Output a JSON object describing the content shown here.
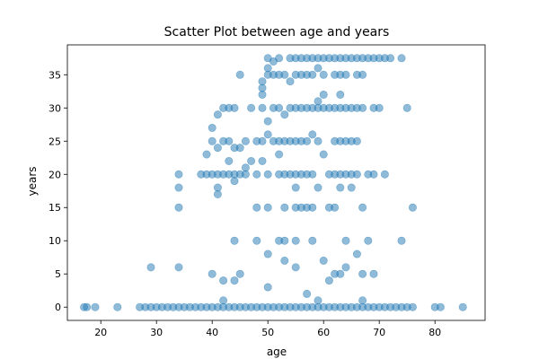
{
  "chart_data": {
    "type": "scatter",
    "title": "Scatter Plot between age and years",
    "xlabel": "age",
    "ylabel": "years",
    "xlim": [
      14,
      89
    ],
    "ylim": [
      -2,
      39.5
    ],
    "xticks": [
      20,
      30,
      40,
      50,
      60,
      70,
      80
    ],
    "yticks": [
      0,
      5,
      10,
      15,
      20,
      25,
      30,
      35
    ],
    "grid": false,
    "legend": "none",
    "color": "#1f77b4",
    "alpha": 0.5,
    "series": [
      {
        "points": [
          [
            17,
            0
          ],
          [
            17.5,
            0
          ],
          [
            19,
            0
          ],
          [
            23,
            0
          ],
          [
            27,
            0
          ],
          [
            28,
            0
          ],
          [
            29,
            0
          ],
          [
            30,
            0
          ],
          [
            31,
            0
          ],
          [
            32,
            0
          ],
          [
            33,
            0
          ],
          [
            34,
            0
          ],
          [
            35,
            0
          ],
          [
            36,
            0
          ],
          [
            37,
            0
          ],
          [
            38,
            0
          ],
          [
            39,
            0
          ],
          [
            40,
            0
          ],
          [
            41,
            0
          ],
          [
            42,
            0
          ],
          [
            43,
            0
          ],
          [
            44,
            0
          ],
          [
            45,
            0
          ],
          [
            46,
            0
          ],
          [
            47,
            0
          ],
          [
            48,
            0
          ],
          [
            49,
            0
          ],
          [
            50,
            0
          ],
          [
            51,
            0
          ],
          [
            52,
            0
          ],
          [
            53,
            0
          ],
          [
            54,
            0
          ],
          [
            55,
            0
          ],
          [
            56,
            0
          ],
          [
            57,
            0
          ],
          [
            58,
            0
          ],
          [
            59,
            0
          ],
          [
            60,
            0
          ],
          [
            61,
            0
          ],
          [
            62,
            0
          ],
          [
            63,
            0
          ],
          [
            64,
            0
          ],
          [
            65,
            0
          ],
          [
            66,
            0
          ],
          [
            67,
            0
          ],
          [
            68,
            0
          ],
          [
            69,
            0
          ],
          [
            70,
            0
          ],
          [
            71,
            0
          ],
          [
            72,
            0
          ],
          [
            73,
            0
          ],
          [
            74,
            0
          ],
          [
            75,
            0
          ],
          [
            76,
            0
          ],
          [
            80,
            0
          ],
          [
            81,
            0
          ],
          [
            85,
            0
          ],
          [
            42,
            1
          ],
          [
            57,
            2
          ],
          [
            50,
            3
          ],
          [
            59,
            1
          ],
          [
            67,
            1
          ],
          [
            29,
            6
          ],
          [
            34,
            6
          ],
          [
            40,
            5
          ],
          [
            42,
            4
          ],
          [
            44,
            4
          ],
          [
            45,
            5
          ],
          [
            50,
            8
          ],
          [
            53,
            7
          ],
          [
            55,
            6
          ],
          [
            60,
            7
          ],
          [
            61,
            4
          ],
          [
            62,
            5
          ],
          [
            63,
            5
          ],
          [
            64,
            6
          ],
          [
            66,
            8
          ],
          [
            67,
            5
          ],
          [
            69,
            5
          ],
          [
            44,
            10
          ],
          [
            48,
            10
          ],
          [
            52,
            10
          ],
          [
            53,
            10
          ],
          [
            55,
            10
          ],
          [
            58,
            10
          ],
          [
            64,
            10
          ],
          [
            68,
            10
          ],
          [
            74,
            10
          ],
          [
            34,
            15
          ],
          [
            48,
            15
          ],
          [
            50,
            15
          ],
          [
            53,
            15
          ],
          [
            55,
            15
          ],
          [
            56,
            15
          ],
          [
            57,
            15
          ],
          [
            58,
            15
          ],
          [
            61,
            15
          ],
          [
            62,
            15
          ],
          [
            67,
            15
          ],
          [
            76,
            15
          ],
          [
            34,
            18
          ],
          [
            41,
            17
          ],
          [
            41,
            18
          ],
          [
            55,
            18
          ],
          [
            59,
            18
          ],
          [
            63,
            18
          ],
          [
            65,
            18
          ],
          [
            34,
            20
          ],
          [
            38,
            20
          ],
          [
            39,
            20
          ],
          [
            40,
            20
          ],
          [
            41,
            20
          ],
          [
            42,
            20
          ],
          [
            43,
            20
          ],
          [
            44,
            20
          ],
          [
            45,
            20
          ],
          [
            46,
            20
          ],
          [
            48,
            20
          ],
          [
            50,
            20
          ],
          [
            52,
            20
          ],
          [
            53,
            20
          ],
          [
            54,
            20
          ],
          [
            55,
            20
          ],
          [
            56,
            20
          ],
          [
            57,
            20
          ],
          [
            58,
            20
          ],
          [
            61,
            20
          ],
          [
            62,
            20
          ],
          [
            63,
            20
          ],
          [
            64,
            20
          ],
          [
            65,
            20
          ],
          [
            66,
            20
          ],
          [
            68,
            20
          ],
          [
            69,
            20
          ],
          [
            71,
            20
          ],
          [
            44,
            19
          ],
          [
            46,
            21
          ],
          [
            47,
            22
          ],
          [
            49,
            22
          ],
          [
            52,
            23
          ],
          [
            60,
            23
          ],
          [
            39,
            23
          ],
          [
            43,
            22
          ],
          [
            40,
            25
          ],
          [
            41,
            24
          ],
          [
            42,
            25
          ],
          [
            43,
            25
          ],
          [
            44,
            24
          ],
          [
            45,
            24
          ],
          [
            46,
            25
          ],
          [
            48,
            25
          ],
          [
            49,
            25
          ],
          [
            51,
            25
          ],
          [
            52,
            25
          ],
          [
            53,
            25
          ],
          [
            54,
            25
          ],
          [
            55,
            25
          ],
          [
            56,
            25
          ],
          [
            57,
            25
          ],
          [
            59,
            25
          ],
          [
            62,
            25
          ],
          [
            63,
            25
          ],
          [
            64,
            25
          ],
          [
            65,
            25
          ],
          [
            66,
            25
          ],
          [
            40,
            27
          ],
          [
            50,
            26
          ],
          [
            58,
            26
          ],
          [
            41,
            29
          ],
          [
            42,
            30
          ],
          [
            43,
            30
          ],
          [
            44,
            30
          ],
          [
            47,
            30
          ],
          [
            49,
            30
          ],
          [
            50,
            28
          ],
          [
            51,
            30
          ],
          [
            52,
            30
          ],
          [
            53,
            29
          ],
          [
            54,
            30
          ],
          [
            55,
            30
          ],
          [
            56,
            30
          ],
          [
            57,
            30
          ],
          [
            58,
            30
          ],
          [
            59,
            30
          ],
          [
            60,
            30
          ],
          [
            61,
            30
          ],
          [
            62,
            30
          ],
          [
            63,
            30
          ],
          [
            64,
            30
          ],
          [
            65,
            30
          ],
          [
            66,
            30
          ],
          [
            67,
            30
          ],
          [
            69,
            30
          ],
          [
            70,
            30
          ],
          [
            75,
            30
          ],
          [
            59,
            31
          ],
          [
            60,
            32
          ],
          [
            63,
            32
          ],
          [
            49,
            32
          ],
          [
            49,
            33
          ],
          [
            45,
            35
          ],
          [
            49,
            34
          ],
          [
            50,
            35
          ],
          [
            51,
            35
          ],
          [
            52,
            35
          ],
          [
            53,
            35
          ],
          [
            54,
            34
          ],
          [
            55,
            35
          ],
          [
            56,
            35
          ],
          [
            57,
            35
          ],
          [
            58,
            35
          ],
          [
            59,
            36
          ],
          [
            60,
            35
          ],
          [
            62,
            35
          ],
          [
            63,
            35
          ],
          [
            64,
            35
          ],
          [
            66,
            35
          ],
          [
            67,
            35
          ],
          [
            50,
            36
          ],
          [
            51,
            37
          ],
          [
            50,
            37.5
          ],
          [
            52,
            37.5
          ],
          [
            54,
            37.5
          ],
          [
            55,
            37.5
          ],
          [
            56,
            37.5
          ],
          [
            57,
            37.5
          ],
          [
            58,
            37.5
          ],
          [
            59,
            37.5
          ],
          [
            60,
            37.5
          ],
          [
            61,
            37.5
          ],
          [
            62,
            37.5
          ],
          [
            63,
            37.5
          ],
          [
            64,
            37.5
          ],
          [
            65,
            37.5
          ],
          [
            66,
            37.5
          ],
          [
            67,
            37.5
          ],
          [
            68,
            37.5
          ],
          [
            69,
            37.5
          ],
          [
            70,
            37.5
          ],
          [
            71,
            37.5
          ],
          [
            72,
            37.5
          ],
          [
            74,
            37.5
          ]
        ]
      }
    ]
  }
}
